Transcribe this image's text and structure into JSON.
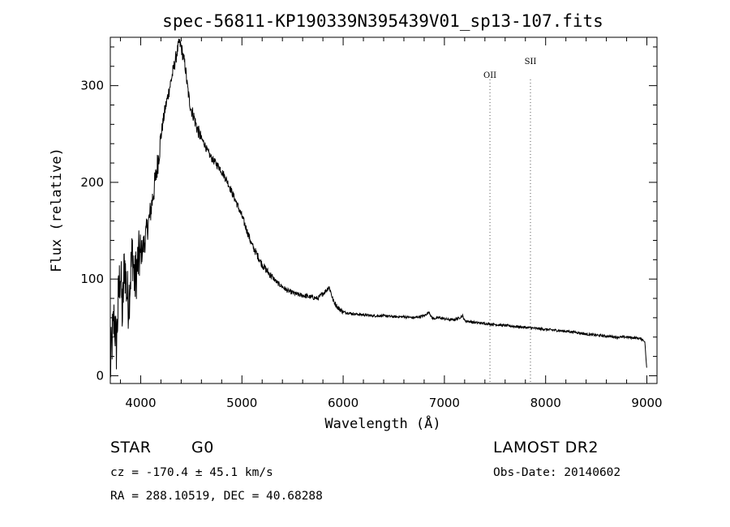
{
  "chart_data": {
    "type": "line",
    "title": "spec-56811-KP190339N395439V01_sp13-107.fits",
    "xlabel": "Wavelength (Å)",
    "ylabel": "Flux (relative)",
    "xlim": [
      3700,
      9100
    ],
    "ylim": [
      -8,
      350
    ],
    "xticks": [
      4000,
      5000,
      6000,
      7000,
      8000,
      9000
    ],
    "yticks": [
      0,
      100,
      200,
      300
    ],
    "grid": false,
    "series": [
      {
        "x": [
          3700,
          3720,
          3740,
          3760,
          3780,
          3800,
          3820,
          3840,
          3860,
          3880,
          3900,
          3920,
          3940,
          3960,
          3980,
          4000,
          4030,
          4060,
          4090,
          4120,
          4150,
          4180,
          4210,
          4240,
          4270,
          4300,
          4330,
          4360,
          4380,
          4400,
          4420,
          4440,
          4460,
          4480,
          4500,
          4520,
          4540,
          4560,
          4580,
          4600,
          4630,
          4660,
          4700,
          4740,
          4780,
          4820,
          4860,
          4900,
          4950,
          5000,
          5050,
          5100,
          5150,
          5200,
          5250,
          5300,
          5350,
          5400,
          5450,
          5500,
          5550,
          5600,
          5650,
          5700,
          5750,
          5800,
          5830,
          5860,
          5880,
          5900,
          5950,
          6000,
          6100,
          6200,
          6300,
          6400,
          6500,
          6600,
          6700,
          6800,
          6850,
          6870,
          6890,
          6950,
          7000,
          7050,
          7100,
          7150,
          7180,
          7200,
          7250,
          7300,
          7400,
          7500,
          7600,
          7700,
          7800,
          7900,
          8000,
          8100,
          8200,
          8300,
          8400,
          8500,
          8600,
          8700,
          8800,
          8900,
          8950,
          8980,
          9000
        ],
        "y": [
          5,
          40,
          60,
          30,
          80,
          110,
          60,
          120,
          90,
          75,
          105,
          130,
          95,
          110,
          120,
          125,
          135,
          150,
          165,
          185,
          205,
          230,
          255,
          275,
          290,
          305,
          320,
          335,
          345,
          340,
          330,
          320,
          300,
          285,
          275,
          270,
          262,
          255,
          250,
          245,
          240,
          232,
          225,
          220,
          215,
          208,
          200,
          190,
          178,
          165,
          150,
          135,
          125,
          115,
          108,
          102,
          96,
          92,
          88,
          86,
          84,
          83,
          82,
          81,
          80,
          85,
          88,
          92,
          86,
          78,
          70,
          66,
          64,
          63,
          62,
          62,
          61,
          61,
          60,
          62,
          66,
          61,
          59,
          60,
          59,
          58,
          58,
          60,
          62,
          57,
          56,
          55,
          54,
          53,
          52,
          51,
          50,
          49,
          48,
          47,
          46,
          45,
          43,
          42,
          41,
          40,
          40,
          39,
          38,
          35,
          5
        ]
      }
    ],
    "annotations": [
      {
        "label": "OII",
        "x": 7450
      },
      {
        "label": "SII",
        "x": 7850
      }
    ]
  },
  "info": {
    "class": "STAR",
    "subclass": "G0",
    "survey": "LAMOST DR2",
    "cz": "cz = -170.4 ± 45.1 km/s",
    "obs_date": "Obs-Date: 20140602",
    "coords": "RA = 288.10519, DEC =  40.68288"
  }
}
